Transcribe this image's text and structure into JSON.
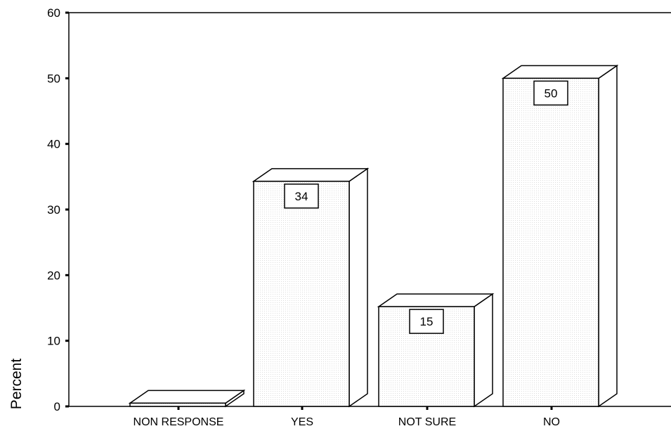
{
  "chart_data": {
    "type": "bar",
    "categories": [
      "NON RESPONSE",
      "YES",
      "NOT SURE",
      "NO"
    ],
    "values": [
      0.5,
      34.3,
      15.2,
      50
    ],
    "data_labels": [
      "",
      "34",
      "15",
      "50"
    ],
    "ylabel": "Percent",
    "ylim": [
      0,
      60
    ],
    "yticks": [
      0,
      10,
      20,
      30,
      40,
      50,
      60
    ],
    "grid": false,
    "style": "3d-bars",
    "colors": {
      "bar_fill": "#ffffff",
      "stroke": "#000000",
      "background": "#ffffff"
    }
  }
}
